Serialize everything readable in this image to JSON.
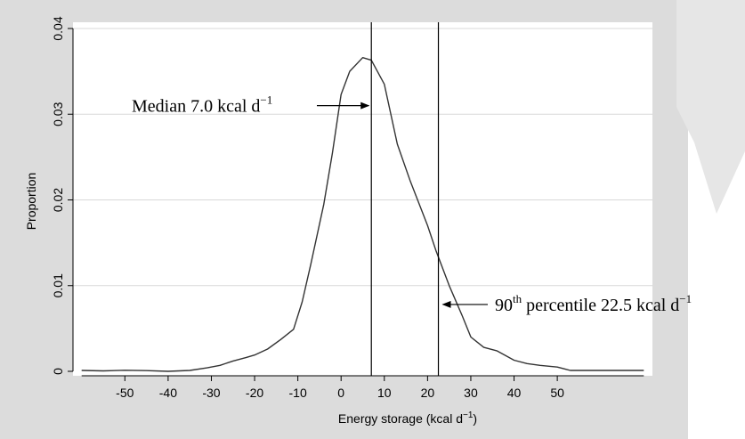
{
  "chart_data": {
    "type": "line",
    "title": "",
    "xlabel": "Energy storage (kcal d",
    "xlabel_sup": "−1",
    "xlabel_tail": ")",
    "ylabel": "Proportion",
    "xlim": [
      -62,
      72
    ],
    "ylim": [
      0,
      0.04
    ],
    "grid": "horizontal",
    "x_ticks": [
      -50,
      -40,
      -30,
      -20,
      -10,
      0,
      10,
      20,
      30,
      40,
      50
    ],
    "x_tick_labels": [
      "-50",
      "-40",
      "-30",
      "-20",
      "-10",
      "0",
      "10",
      "20",
      "30",
      "40",
      "50"
    ],
    "y_ticks": [
      0,
      0.01,
      0.02,
      0.03,
      0.04
    ],
    "y_tick_labels": [
      "0",
      "0.01",
      "0.02",
      "0.03",
      "0.04"
    ],
    "series": [
      {
        "x": [
          -60,
          -55,
          -50,
          -45,
          -40,
          -35,
          -31,
          -28,
          -25,
          -22,
          -20,
          -17,
          -14,
          -11,
          -9,
          -7,
          -4,
          -2,
          0,
          2,
          5,
          7,
          10,
          13,
          16,
          20,
          22,
          25,
          28,
          30,
          33,
          36,
          40,
          43,
          46,
          50,
          53,
          55,
          60,
          65,
          70
        ],
        "y": [
          0.0001,
          5e-05,
          0.00012,
          8e-05,
          0,
          0.0001,
          0.0004,
          0.0007,
          0.0012,
          0.0016,
          0.0019,
          0.0026,
          0.0037,
          0.0049,
          0.0081,
          0.0125,
          0.0195,
          0.0255,
          0.0323,
          0.035,
          0.0366,
          0.0363,
          0.0335,
          0.0265,
          0.0222,
          0.017,
          0.014,
          0.01,
          0.0065,
          0.004,
          0.0028,
          0.0024,
          0.0013,
          0.0009,
          0.0007,
          0.0005,
          0.0001,
          0.0001,
          0.0001,
          0.0001,
          0.0001
        ]
      }
    ],
    "vertical_lines": [
      7.0,
      22.5
    ],
    "annotations": [
      {
        "text": "Median 7.0 kcal d",
        "sup": "−1",
        "target_x": 7.0,
        "target_y": 0.031
      },
      {
        "text_pre": "90",
        "text_sup1": "th",
        "text": " percentile 22.5 kcal d",
        "sup": "−1",
        "target_x": 22.5,
        "target_y": 0.0078
      }
    ]
  }
}
